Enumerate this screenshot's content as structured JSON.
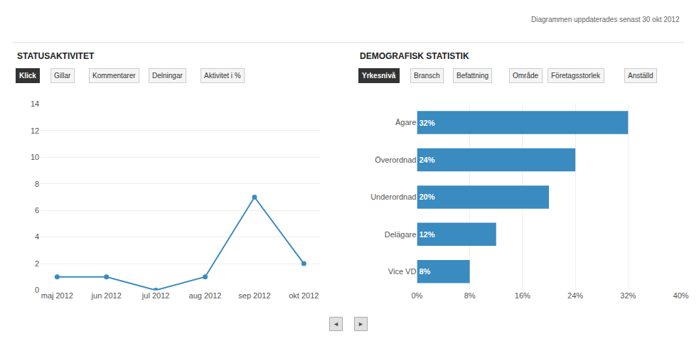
{
  "annotations": [
    "Diagrammen uppdaterades senast 30 okt 2012",
    "◄",
    "►"
  ],
  "chart_data": [
    {
      "type": "line",
      "title": "STATUSAKTIVITET",
      "annotations": [
        "Klick",
        "Gillar",
        "Kommentarer",
        "Delningar",
        "Aktivitet i %"
      ],
      "categories": [
        "maj 2012",
        "jun 2012",
        "jul 2012",
        "aug 2012",
        "sep 2012",
        "okt 2012"
      ],
      "values": [
        1,
        1,
        0,
        1,
        7,
        2
      ],
      "color": "#3a8bbf",
      "marker": "circle",
      "ylim": [
        0,
        14
      ],
      "yticks": [
        0,
        2,
        4,
        6,
        8,
        10,
        12,
        14
      ],
      "grid": true
    },
    {
      "type": "bar",
      "orientation": "horizontal",
      "title": "DEMOGRAFISK STATISTIK",
      "annotations": [
        "Yrkesnivå",
        "Bransch",
        "Befattning",
        "Område",
        "Företagsstorlek",
        "Anställd"
      ],
      "categories": [
        "Vice VD",
        "Delägare",
        "Underordnad",
        "Överordnad",
        "Ägare"
      ],
      "values": [
        8,
        12,
        20,
        24,
        32
      ],
      "value_labels": [
        "8%",
        "12%",
        "20%",
        "24%",
        "32%"
      ],
      "data_labels": true,
      "color": "#3a8bbf",
      "xlim": [
        0,
        40
      ],
      "xticks": [
        {
          "value": 0,
          "label": "0%"
        },
        {
          "value": 8,
          "label": "8%"
        },
        {
          "value": 16,
          "label": "16%"
        },
        {
          "value": 24,
          "label": "24%"
        },
        {
          "value": 32,
          "label": "32%"
        },
        {
          "value": 40,
          "label": "40%"
        }
      ],
      "grid": true
    }
  ]
}
